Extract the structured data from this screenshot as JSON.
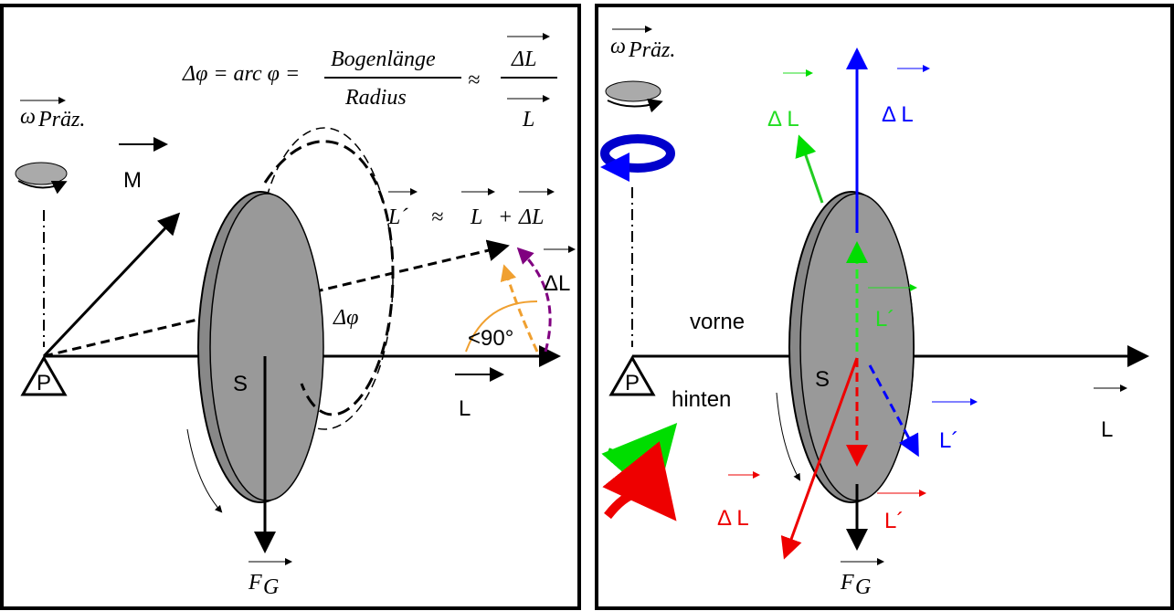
{
  "left": {
    "formula": {
      "lhs": "Δφ = arc φ =",
      "numerator": "Bogenlänge",
      "denominator": "Radius",
      "approx": "≈",
      "numerator2": "ΔL",
      "denominator2": "L"
    },
    "omega": "ω",
    "omega_sub": "Präz.",
    "torque": "M",
    "sum": {
      "lhs": "L´",
      "approx": "≈",
      "term1": "L",
      "plus": "+",
      "term2": "ΔL"
    },
    "delta_l": "ΔL",
    "angle": "<90°",
    "delta_phi": "Δφ",
    "pivot": "P",
    "center": "S",
    "momentum": "L",
    "force": "F",
    "force_sub": "G"
  },
  "right": {
    "omega": "ω",
    "omega_sub": "Präz.",
    "delta_l_green": "Δ L",
    "delta_l_blue": "Δ L",
    "l_prime_green": "L´",
    "front": "vorne",
    "back": "hinten",
    "pivot": "P",
    "center": "S",
    "momentum": "L",
    "l_prime_blue": "L´",
    "delta_l_red": "Δ L",
    "l_prime_red": "L´",
    "force": "F",
    "force_sub": "G"
  }
}
